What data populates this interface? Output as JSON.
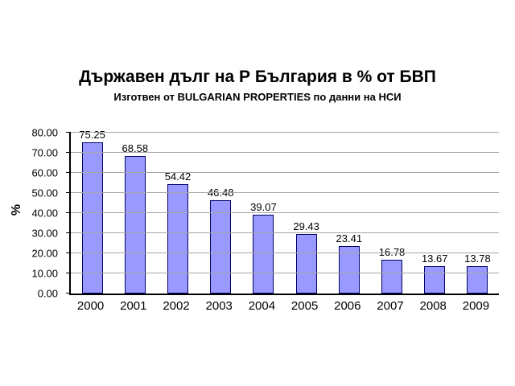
{
  "chart": {
    "title": "Държавен дълг на Р България в % от БВП",
    "subtitle": "Изготвен от BULGARIAN PROPERTIES по данни на НСИ",
    "ylabel": "%"
  },
  "chart_data": {
    "type": "bar",
    "title": "Държавен дълг на Р България в % от БВП",
    "subtitle": "Изготвен от BULGARIAN PROPERTIES по данни на НСИ",
    "categories": [
      "2000",
      "2001",
      "2002",
      "2003",
      "2004",
      "2005",
      "2006",
      "2007",
      "2008",
      "2009"
    ],
    "values": [
      75.25,
      68.58,
      54.42,
      46.48,
      39.07,
      29.43,
      23.41,
      16.78,
      13.67,
      13.78
    ],
    "value_labels": [
      "75.25",
      "68.58",
      "54.42",
      "46.48",
      "39.07",
      "29.43",
      "23.41",
      "16.78",
      "13.67",
      "13.78"
    ],
    "xlabel": "",
    "ylabel": "%",
    "ylim": [
      0,
      80
    ],
    "y_ticks": [
      "0.00",
      "10.00",
      "20.00",
      "30.00",
      "40.00",
      "50.00",
      "60.00",
      "70.00",
      "80.00"
    ],
    "grid": true,
    "legend": false,
    "colors": {
      "bar_fill": "#9999ff",
      "bar_border": "#000066",
      "gridline": "#a6a6a6",
      "axis": "#000000",
      "text": "#000000",
      "background": "#ffffff"
    }
  }
}
